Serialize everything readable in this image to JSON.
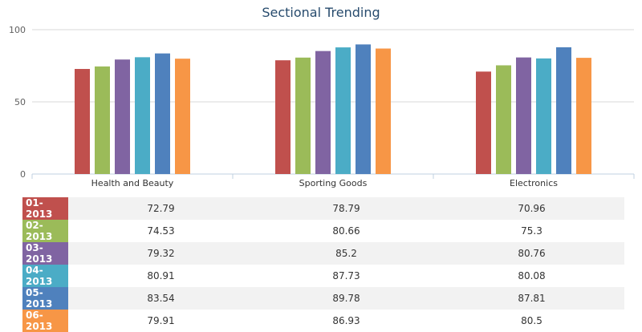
{
  "chart_data": {
    "type": "bar",
    "title": "Sectional Trending",
    "categories": [
      "Health and Beauty",
      "Sporting Goods",
      "Electronics"
    ],
    "ylim": [
      0,
      100
    ],
    "yticks": [
      "0",
      "50",
      "100"
    ],
    "grid": true,
    "series": [
      {
        "name": "01-2013",
        "color": "#c0504d",
        "values": [
          72.79,
          78.79,
          70.96
        ],
        "labels": [
          "72.79",
          "78.79",
          "70.96"
        ]
      },
      {
        "name": "02-2013",
        "color": "#9bbb59",
        "values": [
          74.53,
          80.66,
          75.3
        ],
        "labels": [
          "74.53",
          "80.66",
          "75.3"
        ]
      },
      {
        "name": "03-2013",
        "color": "#8064a2",
        "values": [
          79.32,
          85.2,
          80.76
        ],
        "labels": [
          "79.32",
          "85.2",
          "80.76"
        ]
      },
      {
        "name": "04-2013",
        "color": "#4bacc6",
        "values": [
          80.91,
          87.73,
          80.08
        ],
        "labels": [
          "80.91",
          "87.73",
          "80.08"
        ]
      },
      {
        "name": "05-2013",
        "color": "#4f81bd",
        "values": [
          83.54,
          89.78,
          87.81
        ],
        "labels": [
          "83.54",
          "89.78",
          "87.81"
        ]
      },
      {
        "name": "06-2013",
        "color": "#f79646",
        "values": [
          79.91,
          86.93,
          80.5
        ],
        "labels": [
          "79.91",
          "86.93",
          "80.5"
        ]
      }
    ]
  }
}
